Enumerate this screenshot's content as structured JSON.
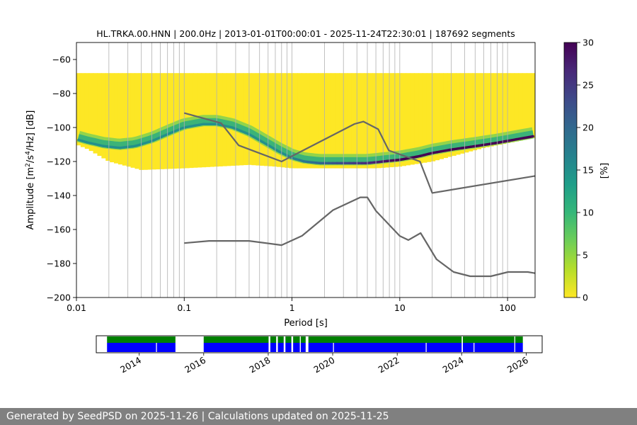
{
  "chart_data": [
    {
      "type": "heatmap",
      "title": "HL.TRKA.00.HNN | 200.0Hz | 2013-01-01T00:00:01 - 2025-11-24T22:30:01 | 187692 segments",
      "xlabel": "Period [s]",
      "ylabel_parts": [
        "Amplitude [m",
        "2",
        "/s",
        "4",
        "/Hz] [dB]"
      ],
      "x_scale": "log",
      "xlim": [
        0.01,
        180
      ],
      "ylim": [
        -200,
        -50
      ],
      "x_ticks": [
        0.01,
        0.1,
        1,
        10,
        100
      ],
      "x_tick_labels": [
        "0.01",
        "0.1",
        "1",
        "10",
        "100"
      ],
      "y_ticks": [
        -200,
        -180,
        -160,
        -140,
        -120,
        -100,
        -80,
        -60
      ],
      "y_tick_labels": [
        "−200",
        "−180",
        "−160",
        "−140",
        "−120",
        "−100",
        "−80",
        "−60"
      ],
      "grid": "vertical log gridlines",
      "colorbar": {
        "label": "[%]",
        "range": [
          0,
          30
        ],
        "ticks": [
          0,
          5,
          10,
          15,
          20,
          25,
          30
        ],
        "tick_labels": [
          "0",
          "5",
          "10",
          "15",
          "20",
          "25",
          "30"
        ],
        "colormap": [
          "#fde725",
          "#b5de2b",
          "#6ece58",
          "#35b779",
          "#1f9e89",
          "#26828e",
          "#31688e",
          "#3e4989",
          "#482878",
          "#440154"
        ]
      },
      "ppsd_mode": {
        "x": [
          0.01,
          0.013,
          0.018,
          0.025,
          0.035,
          0.05,
          0.07,
          0.1,
          0.15,
          0.2,
          0.28,
          0.4,
          0.55,
          0.75,
          1.0,
          1.3,
          1.8,
          2.5,
          3.5,
          5,
          7,
          10,
          15,
          20,
          30,
          50,
          80,
          120,
          180
        ],
        "y": [
          -107,
          -109,
          -111,
          -112,
          -111,
          -108,
          -104,
          -100,
          -98,
          -98,
          -100,
          -104,
          -109,
          -114,
          -118,
          -120,
          -121,
          -121,
          -121,
          -121,
          -120,
          -119,
          -117,
          -115,
          -113,
          -111,
          -109,
          -107,
          -105
        ]
      },
      "data_extent": {
        "x": [
          0.01,
          0.013,
          0.02,
          0.04,
          0.1,
          0.2,
          0.4,
          0.7,
          1,
          1.5,
          3,
          6,
          10,
          20,
          60,
          180
        ],
        "upper": [
          -68,
          -68,
          -68,
          -68,
          -68,
          -68,
          -68,
          -68,
          -68,
          -68,
          -68,
          -68,
          -68,
          -68,
          -68,
          -68
        ],
        "lower": [
          -110,
          -113,
          -120,
          -125,
          -124,
          -123,
          -122,
          -123,
          -124,
          -124,
          -124,
          -124,
          -123,
          -120,
          -112,
          -106
        ]
      },
      "series": [
        {
          "name": "high_noise_model",
          "x": [
            0.1,
            0.22,
            0.32,
            0.8,
            3.8,
            4.6,
            6.3,
            7.9,
            15.4,
            20,
            180
          ],
          "y": [
            -91.5,
            -97.4,
            -110.5,
            -120.0,
            -97.9,
            -96.5,
            -101.0,
            -113.5,
            -120.0,
            -138.5,
            -128.5
          ]
        },
        {
          "name": "low_noise_model",
          "x": [
            0.1,
            0.17,
            0.4,
            0.8,
            1.24,
            2.4,
            4.3,
            5.0,
            6.0,
            10.0,
            12.0,
            15.6,
            21.9,
            31.6,
            45.0,
            70.0,
            101.0,
            154.0,
            180
          ],
          "y": [
            -168.0,
            -166.7,
            -166.7,
            -169.2,
            -163.7,
            -148.6,
            -141.1,
            -141.1,
            -149.0,
            -163.8,
            -166.2,
            -162.1,
            -177.5,
            -185.0,
            -187.5,
            -187.5,
            -185.0,
            -185.0,
            -185.7
          ]
        }
      ]
    },
    {
      "type": "availability-timeline",
      "xlim": [
        "2012-09-01",
        "2026-07-01"
      ],
      "x_tick_labels": [
        "2014",
        "2016",
        "2018",
        "2020",
        "2022",
        "2024",
        "2026"
      ],
      "colors": {
        "data": "#0000ff",
        "processed": "#008000"
      },
      "data_periods": [
        [
          "2013-01-01",
          "2014-07-10"
        ],
        [
          "2014-07-20",
          "2015-02-15"
        ],
        [
          "2016-01-01",
          "2018-01-05"
        ],
        [
          "2018-01-25",
          "2018-04-01"
        ],
        [
          "2018-04-20",
          "2018-06-25"
        ],
        [
          "2018-07-15",
          "2018-09-20"
        ],
        [
          "2018-10-10",
          "2018-12-25"
        ],
        [
          "2019-01-05",
          "2019-03-01"
        ],
        [
          "2019-04-01",
          "2020-01-05"
        ],
        [
          "2020-01-15",
          "2022-11-20"
        ],
        [
          "2022-11-30",
          "2024-01-01"
        ],
        [
          "2024-01-15",
          "2024-05-15"
        ],
        [
          "2024-05-25",
          "2025-08-20"
        ],
        [
          "2025-08-30",
          "2025-11-24"
        ]
      ],
      "processed_periods": [
        [
          "2013-01-01",
          "2015-02-15"
        ],
        [
          "2016-01-01",
          "2018-01-05"
        ],
        [
          "2018-01-25",
          "2018-04-01"
        ],
        [
          "2018-04-20",
          "2018-06-25"
        ],
        [
          "2018-07-15",
          "2018-09-20"
        ],
        [
          "2018-10-10",
          "2018-12-25"
        ],
        [
          "2019-01-05",
          "2019-03-01"
        ],
        [
          "2019-04-01",
          "2024-01-01"
        ],
        [
          "2024-01-15",
          "2025-08-20"
        ],
        [
          "2025-08-30",
          "2025-11-24"
        ]
      ]
    }
  ],
  "footer": {
    "text": "Generated by SeedPSD on 2025-11-26 | Calculations updated on 2025-11-25"
  }
}
